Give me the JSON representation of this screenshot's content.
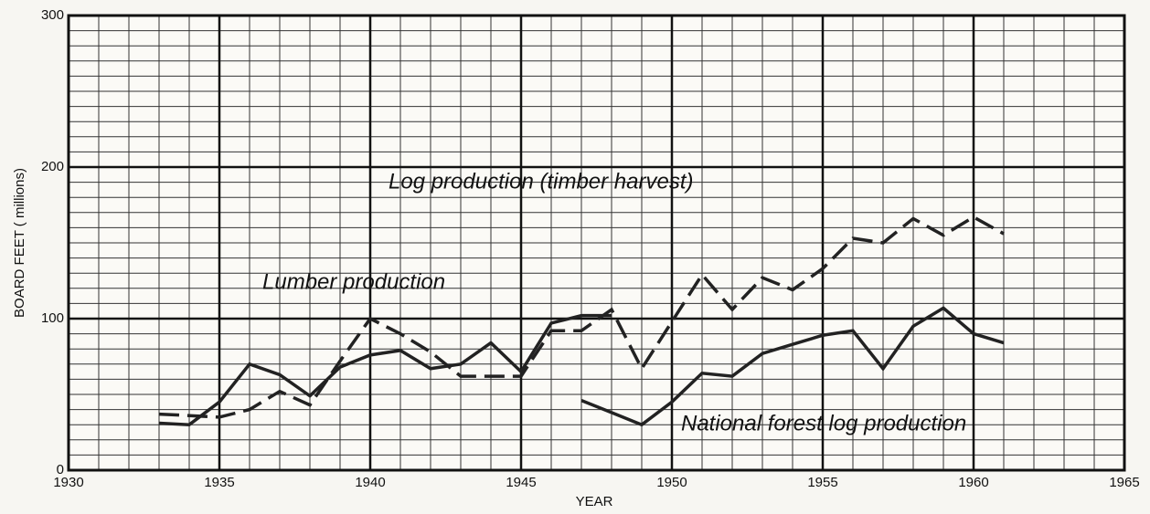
{
  "chart_data": {
    "type": "line",
    "xlabel": "YEAR",
    "ylabel": "BOARD FEET ( millions)",
    "x": [
      1933,
      1934,
      1935,
      1936,
      1937,
      1938,
      1939,
      1940,
      1941,
      1942,
      1943,
      1944,
      1945,
      1946,
      1947,
      1948,
      1949,
      1950,
      1951,
      1952,
      1953,
      1954,
      1955,
      1956,
      1957,
      1958,
      1959,
      1960,
      1961
    ],
    "series": [
      {
        "name": "Log production (timber harvest)",
        "color": "#222222",
        "style": "dashed",
        "values": [
          37,
          36,
          35,
          40,
          52,
          43,
          72,
          100,
          90,
          78,
          62,
          62,
          62,
          92,
          92,
          106,
          67,
          98,
          129,
          106,
          127,
          119,
          133,
          153,
          150,
          166,
          155,
          167,
          156
        ]
      },
      {
        "name": "Lumber production",
        "color": "#222222",
        "style": "solid",
        "values": [
          31,
          30,
          45,
          70,
          63,
          49,
          68,
          76,
          79,
          67,
          70,
          84,
          65,
          97,
          102,
          102,
          null,
          null,
          null,
          null,
          null,
          null,
          null,
          null,
          null,
          null,
          null,
          null,
          null
        ]
      },
      {
        "name": "National forest log production",
        "color": "#222222",
        "style": "solid",
        "values": [
          null,
          null,
          null,
          null,
          null,
          null,
          null,
          null,
          null,
          null,
          null,
          null,
          null,
          null,
          46,
          38,
          30,
          45,
          64,
          62,
          77,
          83,
          89,
          92,
          67,
          95,
          107,
          90,
          84
        ]
      }
    ],
    "xlim": [
      1930,
      1965
    ],
    "xticks": [
      1930,
      1935,
      1940,
      1945,
      1950,
      1955,
      1960,
      1965
    ],
    "ylim": [
      0,
      300
    ],
    "yticks": [
      0,
      100,
      200,
      300
    ],
    "grid": true
  }
}
